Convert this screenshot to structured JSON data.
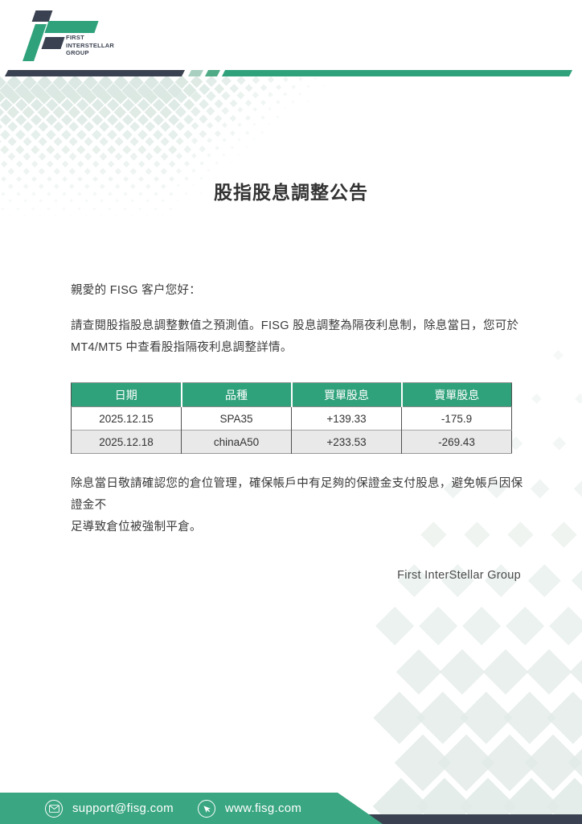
{
  "theme": {
    "accent": "#2fa27b",
    "accent_footer": "#3aa682",
    "accent_pale": "#a9cfc0",
    "accent_mid": "#4faa86",
    "navy": "#3a4150",
    "text": "#3a3a3a",
    "row_alt": "#e9e9e9",
    "diamond": "#d9e7e1",
    "diamond2": "#e2ebe7"
  },
  "header": {
    "logo": {
      "line1": "FIRST",
      "line2": "INTERSTELLAR",
      "line3": "GROUP"
    }
  },
  "document": {
    "title": "股指股息調整公告",
    "greeting": "親愛的 FISG 客户您好：",
    "intro_lines": [
      "請查閱股指股息調整數值之預測值。FISG 股息調整為隔夜利息制，除息當日，您可於",
      "MT4/MT5 中查看股指隔夜利息調整詳情。"
    ],
    "closing_lines": [
      "除息當日敬請確認您的倉位管理，確保帳戶中有足夠的保證金支付股息，避免帳戶因保證金不",
      "足導致倉位被強制平倉。"
    ],
    "signature": "First InterStellar Group"
  },
  "table": {
    "headers": [
      "日期",
      "品種",
      "買單股息",
      "賣單股息"
    ],
    "rows": [
      [
        "2025.12.15",
        "SPA35",
        "+139.33",
        "-175.9"
      ],
      [
        "2025.12.18",
        "chinaA50",
        "+233.53",
        "-269.43"
      ]
    ]
  },
  "footer": {
    "email": "support@fisg.com",
    "website": "www.fisg.com",
    "email_icon": "envelope-icon",
    "website_icon": "cursor-icon"
  }
}
